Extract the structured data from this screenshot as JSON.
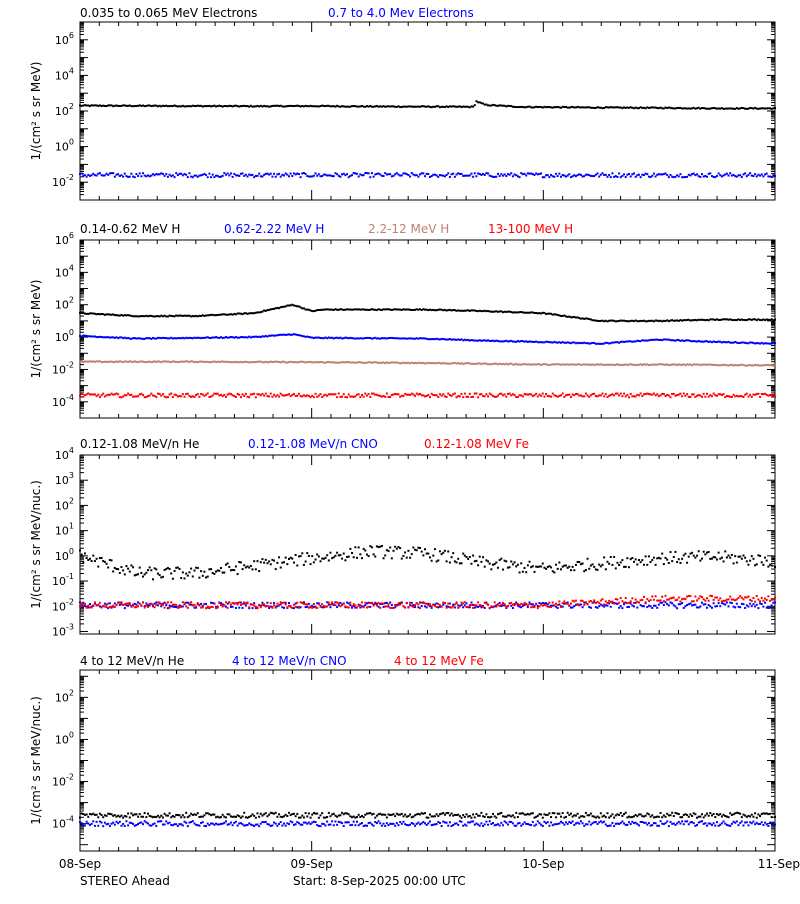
{
  "chart_data": [
    {
      "type": "scatter",
      "ylabel": "1/(cm² s sr MeV)",
      "yscale": "log",
      "ylim_exp": [
        -3,
        7
      ],
      "ytick_exp": [
        -2,
        0,
        2,
        4,
        6
      ],
      "series": [
        {
          "name": "0.035 to 0.065 MeV Electrons",
          "color": "#000000",
          "values": [
            [
              0.0,
              200
            ],
            [
              0.25,
              195
            ],
            [
              0.5,
              190
            ],
            [
              0.75,
              185
            ],
            [
              1.0,
              190
            ],
            [
              1.25,
              180
            ],
            [
              1.5,
              175
            ],
            [
              1.7,
              170
            ],
            [
              1.71,
              350
            ],
            [
              1.75,
              220
            ],
            [
              1.9,
              170
            ],
            [
              2.0,
              165
            ],
            [
              2.25,
              155
            ],
            [
              2.5,
              150
            ],
            [
              2.75,
              140
            ],
            [
              3.0,
              140
            ]
          ]
        },
        {
          "name": "0.7 to 4.0 Mev Electrons",
          "color": "#0000ff",
          "values": [
            [
              0.0,
              0.025
            ],
            [
              0.5,
              0.025
            ],
            [
              1.0,
              0.025
            ],
            [
              1.5,
              0.025
            ],
            [
              2.0,
              0.025
            ],
            [
              2.5,
              0.025
            ],
            [
              3.0,
              0.025
            ]
          ]
        }
      ]
    },
    {
      "type": "scatter",
      "ylabel": "1/(cm² s sr MeV)",
      "yscale": "log",
      "ylim_exp": [
        -5,
        6
      ],
      "ytick_exp": [
        -4,
        -2,
        0,
        2,
        4,
        6
      ],
      "series": [
        {
          "name": "0.14-0.62 MeV H",
          "color": "#000000",
          "values": [
            [
              0.0,
              30
            ],
            [
              0.25,
              20
            ],
            [
              0.5,
              20
            ],
            [
              0.75,
              30
            ],
            [
              0.92,
              100
            ],
            [
              1.0,
              40
            ],
            [
              1.05,
              50
            ],
            [
              1.25,
              50
            ],
            [
              1.5,
              50
            ],
            [
              1.75,
              40
            ],
            [
              2.0,
              30
            ],
            [
              2.25,
              10
            ],
            [
              2.5,
              10
            ],
            [
              2.75,
              12
            ],
            [
              3.0,
              12
            ]
          ]
        },
        {
          "name": "0.62-2.22 MeV H",
          "color": "#0000ff",
          "values": [
            [
              0.0,
              1.2
            ],
            [
              0.25,
              0.8
            ],
            [
              0.5,
              0.9
            ],
            [
              0.75,
              1.0
            ],
            [
              0.92,
              1.5
            ],
            [
              1.0,
              0.9
            ],
            [
              1.5,
              0.8
            ],
            [
              1.75,
              0.6
            ],
            [
              2.0,
              0.5
            ],
            [
              2.25,
              0.4
            ],
            [
              2.5,
              0.7
            ],
            [
              2.75,
              0.5
            ],
            [
              3.0,
              0.4
            ]
          ]
        },
        {
          "name": "2.2-12 MeV H",
          "color": "#c08070",
          "values": [
            [
              0.0,
              0.03
            ],
            [
              0.5,
              0.03
            ],
            [
              1.0,
              0.028
            ],
            [
              1.5,
              0.025
            ],
            [
              2.0,
              0.02
            ],
            [
              2.5,
              0.02
            ],
            [
              3.0,
              0.018
            ]
          ]
        },
        {
          "name": "13-100 MeV H",
          "color": "#ff0000",
          "values": [
            [
              0.0,
              0.00025
            ],
            [
              0.5,
              0.00025
            ],
            [
              1.0,
              0.00025
            ],
            [
              1.5,
              0.00025
            ],
            [
              2.0,
              0.00025
            ],
            [
              2.5,
              0.00025
            ],
            [
              3.0,
              0.00025
            ]
          ]
        }
      ]
    },
    {
      "type": "scatter",
      "ylabel": "1/(cm² s sr MeV/nuc.)",
      "yscale": "log",
      "ylim_exp": [
        -3.1,
        4
      ],
      "ytick_exp": [
        -3,
        -2,
        -1,
        0,
        1,
        2,
        3,
        4
      ],
      "series": [
        {
          "name": "0.12-1.08 MeV/n He",
          "color": "#000000",
          "values": [
            [
              0.0,
              1.0
            ],
            [
              0.25,
              0.2
            ],
            [
              0.5,
              0.2
            ],
            [
              0.75,
              0.4
            ],
            [
              1.0,
              0.8
            ],
            [
              1.25,
              1.5
            ],
            [
              1.5,
              1.2
            ],
            [
              1.75,
              0.5
            ],
            [
              2.0,
              0.3
            ],
            [
              2.25,
              0.5
            ],
            [
              2.5,
              0.8
            ],
            [
              2.75,
              0.9
            ],
            [
              3.0,
              0.6
            ]
          ]
        },
        {
          "name": "0.12-1.08 MeV/n CNO",
          "color": "#0000ff",
          "values": [
            [
              0.0,
              0.011
            ],
            [
              0.5,
              0.011
            ],
            [
              1.0,
              0.011
            ],
            [
              1.5,
              0.011
            ],
            [
              2.0,
              0.011
            ],
            [
              2.5,
              0.011
            ],
            [
              3.0,
              0.011
            ]
          ]
        },
        {
          "name": "0.12-1.08 MeV Fe",
          "color": "#ff0000",
          "values": [
            [
              0.0,
              0.011
            ],
            [
              0.5,
              0.011
            ],
            [
              1.0,
              0.011
            ],
            [
              1.5,
              0.011
            ],
            [
              2.0,
              0.011
            ],
            [
              2.5,
              0.02
            ],
            [
              3.0,
              0.02
            ]
          ]
        }
      ]
    },
    {
      "type": "scatter",
      "ylabel": "1/(cm² s sr MeV/nuc.)",
      "yscale": "log",
      "ylim_exp": [
        -5.3,
        3.3
      ],
      "ytick_exp": [
        -4,
        -2,
        0,
        2
      ],
      "series": [
        {
          "name": "4 to 12 MeV/n He",
          "color": "#000000",
          "values": [
            [
              0.0,
              0.00025
            ],
            [
              0.5,
              0.00025
            ],
            [
              1.0,
              0.00025
            ],
            [
              1.5,
              0.00025
            ],
            [
              2.0,
              0.00025
            ],
            [
              2.5,
              0.00025
            ],
            [
              3.0,
              0.00025
            ]
          ]
        },
        {
          "name": "4 to 12 MeV/n CNO",
          "color": "#0000ff",
          "values": [
            [
              0.0,
              0.0001
            ],
            [
              0.5,
              0.0001
            ],
            [
              1.0,
              0.0001
            ],
            [
              1.5,
              0.0001
            ],
            [
              2.0,
              0.0001
            ],
            [
              2.5,
              0.0001
            ],
            [
              3.0,
              0.0001
            ]
          ]
        },
        {
          "name": "4 to 12 MeV Fe",
          "color": "#ff0000",
          "values": []
        }
      ]
    }
  ],
  "xaxis": {
    "ticks": [
      "08-Sep",
      "09-Sep",
      "10-Sep",
      "11-Sep"
    ]
  },
  "footer": {
    "spacecraft": "STEREO Ahead",
    "start": "Start:  8-Sep-2025 00:00 UTC"
  }
}
